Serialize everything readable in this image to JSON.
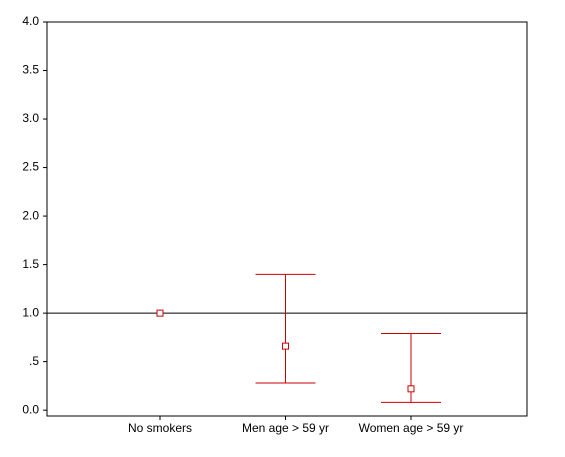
{
  "chart_data": {
    "type": "errorbar",
    "categories": [
      "No smokers",
      "Men age > 59 yr",
      "Women age > 59 yr"
    ],
    "values": [
      1.0,
      0.66,
      0.22
    ],
    "lower": [
      null,
      0.28,
      0.08
    ],
    "upper": [
      null,
      1.4,
      0.79
    ],
    "color": "#cc0000",
    "reference_line": 1.0,
    "ylim": [
      -0.06,
      4.0
    ],
    "yticks": [
      {
        "value": 0,
        "label": "0.0"
      },
      {
        "value": 0.5,
        "label": ".5"
      },
      {
        "value": 1,
        "label": "1.0"
      },
      1.5,
      {
        "value": 2,
        "label": "2.0"
      },
      2.5,
      {
        "value": 3,
        "label": "3.0"
      },
      3.5,
      {
        "value": 4,
        "label": "4.0"
      }
    ]
  }
}
